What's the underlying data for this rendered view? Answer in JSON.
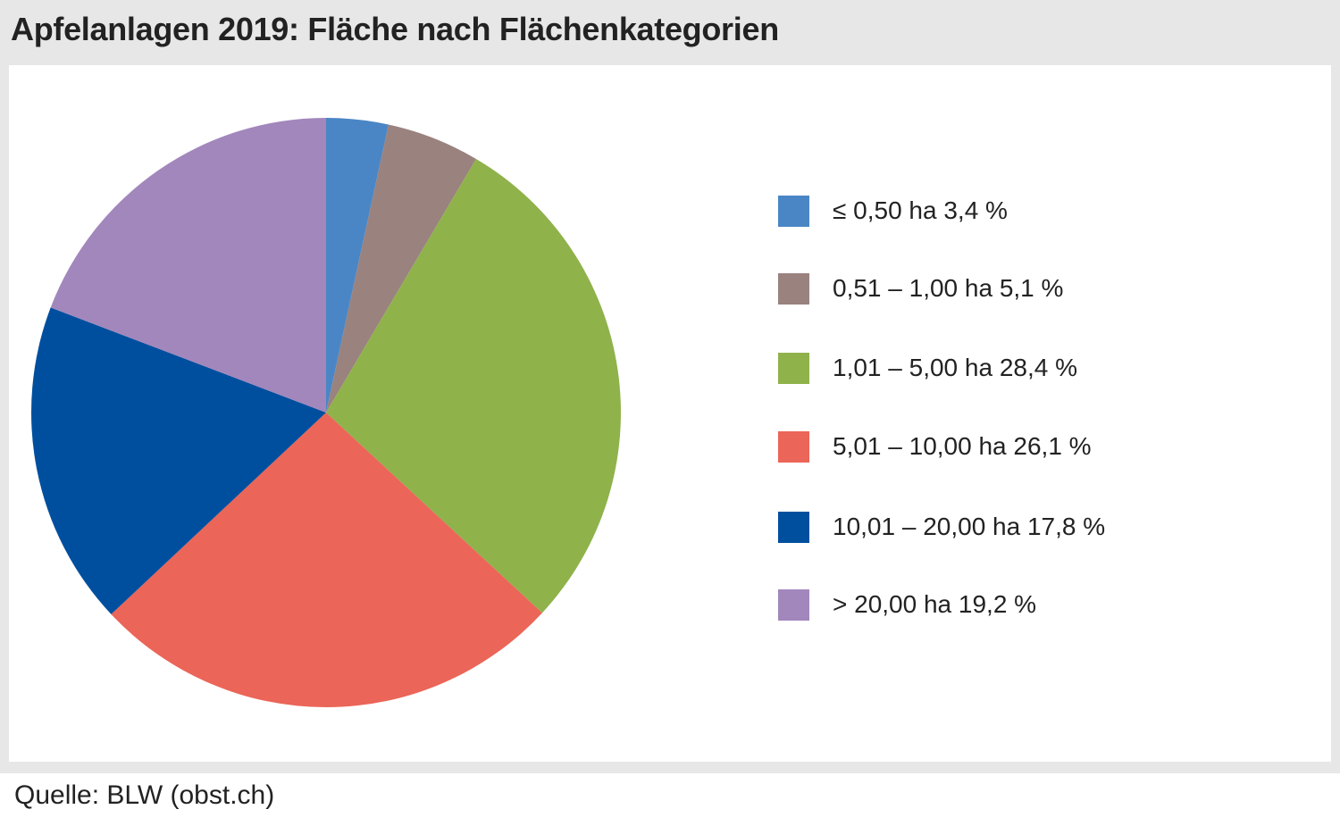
{
  "title": "Apfelanlagen 2019: Fläche nach Flächenkategorien",
  "source": "Quelle: BLW (obst.ch)",
  "chart_data": {
    "type": "pie",
    "title": "Apfelanlagen 2019: Fläche nach Flächenkategorien",
    "start": "12 o'clock",
    "direction": "clockwise",
    "slices": [
      {
        "label": "≤ 0,50 ha 3,4 %",
        "value": 3.4,
        "color": "#4a86c5"
      },
      {
        "label": "0,51 – 1,00 ha 5,1 %",
        "value": 5.1,
        "color": "#9a827e"
      },
      {
        "label": "1,01 – 5,00 ha 28,4 %",
        "value": 28.4,
        "color": "#8fb24b"
      },
      {
        "label": "5,01 – 10,00 ha 26,1 %",
        "value": 26.1,
        "color": "#eb6558"
      },
      {
        "label": "10,01 – 20,00 ha 17,8 %",
        "value": 17.8,
        "color": "#004f9e"
      },
      {
        "label": "> 20,00 ha 19,2 %",
        "value": 19.2,
        "color": "#a287bc"
      }
    ]
  }
}
